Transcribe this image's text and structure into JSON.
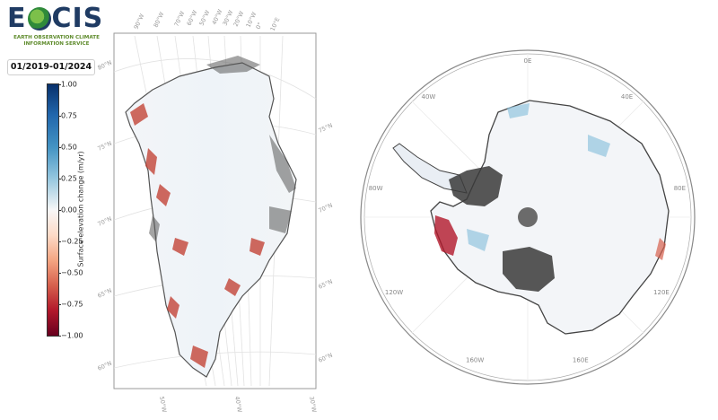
{
  "logo": {
    "wordmark_left": "E",
    "wordmark_right": "CIS",
    "subtitle_line1": "EARTH OBSERVATION CLIMATE",
    "subtitle_line2": "INFORMATION SERVICE",
    "colors": {
      "navy": "#1f3b63",
      "green": "#5d8a2a"
    }
  },
  "period": "01/2019-01/2024",
  "colorbar": {
    "label": "Surface elevation change (m/yr)",
    "ticks": [
      "1.00",
      "0.75",
      "0.50",
      "0.25",
      "0.00",
      "−0.25",
      "−0.50",
      "−0.75",
      "−1.00"
    ],
    "range": [
      -1.0,
      1.0
    ],
    "colormap": "RdBu"
  },
  "greenland_map": {
    "lon_labels_top": [
      "90°W",
      "80°W",
      "70°W",
      "60°W",
      "50°W",
      "40°W",
      "30°W",
      "20°W",
      "10°W",
      "0°",
      "10°E"
    ],
    "lon_labels_bottom": [
      "50°W",
      "40°W",
      "30°W"
    ],
    "lat_labels_left": [
      "80°N",
      "75°N",
      "70°N",
      "65°N",
      "60°N"
    ],
    "lat_labels_right": [
      "75°N",
      "70°N",
      "65°N",
      "60°N"
    ]
  },
  "antarctica_map": {
    "lon_labels": [
      "0E",
      "40E",
      "80E",
      "120E",
      "160E",
      "160W",
      "120W",
      "80W",
      "40W"
    ]
  }
}
